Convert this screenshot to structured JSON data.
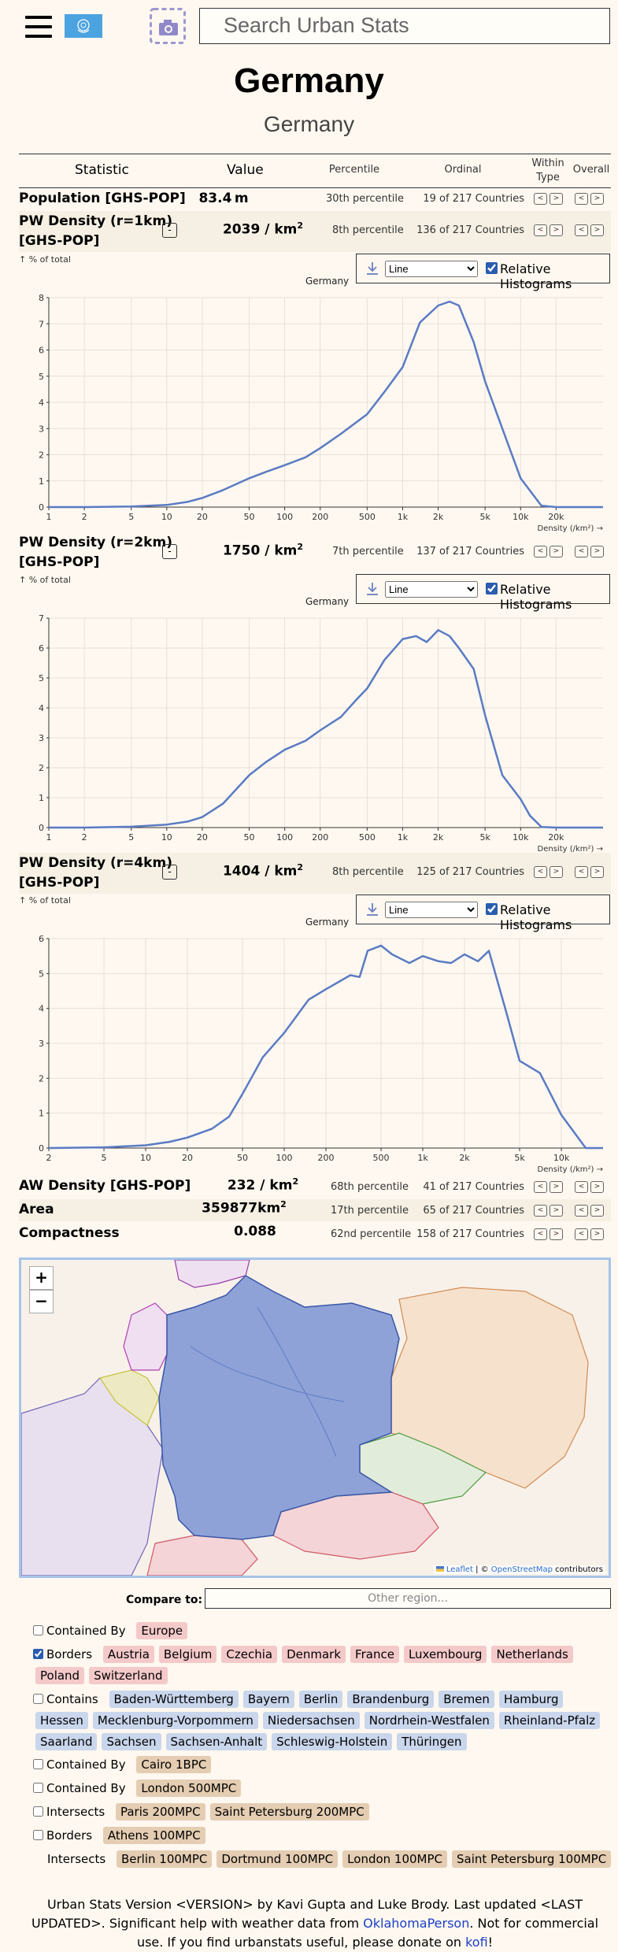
{
  "header": {
    "search_placeholder": "Search Urban Stats",
    "icons": [
      "hamburger-menu-icon",
      "un-flag-icon",
      "camera-icon"
    ]
  },
  "title": "Germany",
  "subtitle": "Germany",
  "table_header": {
    "statistic": "Statistic",
    "value": "Value",
    "percentile": "Percentile",
    "ordinal": "Ordinal",
    "within_type_line1": "Within",
    "within_type_line2": "Type",
    "overall": "Overall"
  },
  "rows": [
    {
      "name": "Population [GHS-POP]",
      "value": "83.4",
      "unit": "m",
      "percentile": "30th percentile",
      "ordinal": "19 of 217 Countries"
    },
    {
      "name_line1": "PW Density (r=1km)",
      "name_line2": "[GHS-POP]",
      "value": "2039",
      "unit": "/ km",
      "unit_sup": "2",
      "percentile": "8th percentile",
      "ordinal": "136 of 217 Countries",
      "expand": "-"
    },
    {
      "name_line1": "PW Density (r=2km)",
      "name_line2": "[GHS-POP]",
      "value": "1750",
      "unit": "/ km",
      "unit_sup": "2",
      "percentile": "7th percentile",
      "ordinal": "137 of 217 Countries",
      "expand": "-"
    },
    {
      "name_line1": "PW Density (r=4km)",
      "name_line2": "[GHS-POP]",
      "value": "1404",
      "unit": "/ km",
      "unit_sup": "2",
      "percentile": "8th percentile",
      "ordinal": "125 of 217 Countries",
      "expand": "-"
    },
    {
      "name": "AW Density [GHS-POP]",
      "value": "232",
      "unit": "/ km",
      "unit_sup": "2",
      "percentile": "68th percentile",
      "ordinal": "41 of 217 Countries"
    },
    {
      "name": "Area",
      "value": "359877",
      "unit": "km",
      "unit_sup": "2",
      "percentile": "17th percentile",
      "ordinal": "65 of 217 Countries"
    },
    {
      "name": "Compactness",
      "value": "0.088",
      "unit": "",
      "percentile": "62nd percentile",
      "ordinal": "158 of 217 Countries"
    }
  ],
  "nav": {
    "prev": "<",
    "next": ">"
  },
  "histogram_controls": {
    "note": "↑ % of total",
    "legend_label": "Germany",
    "style_option": "Line",
    "relative_label": "Relative Histograms",
    "relative_checked": true,
    "xlabel": "Density (/km²) →"
  },
  "chart_data": [
    {
      "type": "line",
      "title": "PW Density (r=1km) histogram",
      "x_scale": "log",
      "x_ticks": [
        "1",
        "2",
        "5",
        "10",
        "20",
        "50",
        "100",
        "200",
        "500",
        "1k",
        "2k",
        "5k",
        "10k",
        "20k"
      ],
      "x_tick_values": [
        1,
        2,
        5,
        10,
        20,
        50,
        100,
        200,
        500,
        1000,
        2000,
        5000,
        10000,
        20000
      ],
      "xlim": [
        1,
        50000
      ],
      "ylim": [
        0,
        8
      ],
      "y_ticks": [
        0,
        1,
        2,
        3,
        4,
        5,
        6,
        7,
        8
      ],
      "xlabel": "Density (/km²) →",
      "ylabel": "% of total",
      "grid": true,
      "series": [
        {
          "name": "Germany",
          "color": "#5a7bc4",
          "x": [
            1,
            2,
            5,
            10,
            15,
            20,
            30,
            50,
            70,
            100,
            150,
            200,
            300,
            500,
            700,
            1000,
            1400,
            2000,
            2500,
            3000,
            4000,
            5000,
            7000,
            10000,
            15000,
            20000,
            30000,
            50000
          ],
          "y": [
            0,
            0,
            0.02,
            0.08,
            0.2,
            0.35,
            0.65,
            1.1,
            1.35,
            1.6,
            1.9,
            2.25,
            2.8,
            3.55,
            4.4,
            5.35,
            7.05,
            7.7,
            7.85,
            7.7,
            6.3,
            4.8,
            3.0,
            1.1,
            0.05,
            0,
            0,
            0
          ]
        }
      ]
    },
    {
      "type": "line",
      "title": "PW Density (r=2km) histogram",
      "x_scale": "log",
      "x_ticks": [
        "1",
        "2",
        "5",
        "10",
        "20",
        "50",
        "100",
        "200",
        "500",
        "1k",
        "2k",
        "5k",
        "10k",
        "20k"
      ],
      "x_tick_values": [
        1,
        2,
        5,
        10,
        20,
        50,
        100,
        200,
        500,
        1000,
        2000,
        5000,
        10000,
        20000
      ],
      "xlim": [
        1,
        50000
      ],
      "ylim": [
        0,
        7
      ],
      "y_ticks": [
        0,
        1,
        2,
        3,
        4,
        5,
        6,
        7
      ],
      "xlabel": "Density (/km²) →",
      "ylabel": "% of total",
      "grid": true,
      "series": [
        {
          "name": "Germany",
          "color": "#5a7bc4",
          "x": [
            1,
            2,
            5,
            10,
            15,
            20,
            30,
            50,
            70,
            100,
            150,
            200,
            300,
            400,
            500,
            700,
            1000,
            1300,
            1600,
            2000,
            2500,
            3000,
            4000,
            5000,
            7000,
            10000,
            12000,
            15000,
            20000,
            50000
          ],
          "y": [
            0,
            0,
            0.03,
            0.1,
            0.2,
            0.35,
            0.8,
            1.75,
            2.2,
            2.6,
            2.9,
            3.25,
            3.7,
            4.25,
            4.65,
            5.6,
            6.3,
            6.4,
            6.2,
            6.6,
            6.4,
            6.0,
            5.3,
            3.75,
            1.75,
            0.95,
            0.4,
            0.02,
            0,
            0
          ]
        }
      ]
    },
    {
      "type": "line",
      "title": "PW Density (r=4km) histogram",
      "x_scale": "log",
      "x_ticks": [
        "2",
        "5",
        "10",
        "20",
        "50",
        "100",
        "200",
        "500",
        "1k",
        "2k",
        "5k",
        "10k"
      ],
      "x_tick_values": [
        2,
        5,
        10,
        20,
        50,
        100,
        200,
        500,
        1000,
        2000,
        5000,
        10000
      ],
      "xlim": [
        2,
        20000
      ],
      "ylim": [
        0,
        6
      ],
      "y_ticks": [
        0,
        1,
        2,
        3,
        4,
        5,
        6
      ],
      "xlabel": "Density (/km²) →",
      "ylabel": "% of total",
      "grid": true,
      "series": [
        {
          "name": "Germany",
          "color": "#5a7bc4",
          "x": [
            2,
            5,
            10,
            15,
            20,
            30,
            40,
            50,
            70,
            100,
            150,
            200,
            300,
            350,
            400,
            500,
            600,
            800,
            1000,
            1300,
            1600,
            2000,
            2500,
            3000,
            4000,
            5000,
            7000,
            10000,
            15000,
            20000
          ],
          "y": [
            0,
            0.02,
            0.08,
            0.18,
            0.3,
            0.55,
            0.9,
            1.55,
            2.6,
            3.3,
            4.25,
            4.55,
            4.95,
            4.9,
            5.65,
            5.8,
            5.55,
            5.3,
            5.5,
            5.35,
            5.3,
            5.55,
            5.35,
            5.65,
            3.9,
            2.5,
            2.15,
            0.95,
            0,
            0
          ]
        }
      ]
    }
  ],
  "map": {
    "zoom_in": "+",
    "zoom_out": "−",
    "attribution_leaflet": "Leaflet",
    "attribution_sep": " | © ",
    "attribution_osm": "OpenStreetMap",
    "attribution_tail": " contributors",
    "colors": {
      "germany": "#7f95cc",
      "neighbors": [
        "#f5d9c3",
        "#e9dced",
        "#ecebc4",
        "#f3d2d4",
        "#dceadc",
        "#e6ddef"
      ]
    }
  },
  "compare": {
    "label": "Compare to:",
    "placeholder": "Other region..."
  },
  "relationships": [
    {
      "kind": "Contained By",
      "checked": false,
      "color": "red",
      "items": [
        "Europe"
      ]
    },
    {
      "kind": "Borders",
      "checked": true,
      "color": "red",
      "items": [
        "Austria",
        "Belgium",
        "Czechia",
        "Denmark",
        "France",
        "Luxembourg",
        "Netherlands",
        "Poland",
        "Switzerland"
      ]
    },
    {
      "kind": "Contains",
      "checked": false,
      "color": "blue",
      "items": [
        "Baden-Württemberg",
        "Bayern",
        "Berlin",
        "Brandenburg",
        "Bremen",
        "Hamburg",
        "Hessen",
        "Mecklenburg-Vorpommern",
        "Niedersachsen",
        "Nordrhein-Westfalen",
        "Rheinland-Pfalz",
        "Saarland",
        "Sachsen",
        "Sachsen-Anhalt",
        "Schleswig-Holstein",
        "Thüringen"
      ]
    },
    {
      "kind": "Contained By",
      "checked": false,
      "color": "tan",
      "items": [
        "Cairo 1BPC"
      ]
    },
    {
      "kind": "Contained By",
      "checked": false,
      "color": "tan",
      "items": [
        "London 500MPC"
      ]
    },
    {
      "kind": "Intersects",
      "checked": false,
      "color": "tan",
      "items": [
        "Paris 200MPC",
        "Saint Petersburg 200MPC"
      ]
    },
    {
      "kind": "Borders",
      "checked": false,
      "color": "tan",
      "items": [
        "Athens 100MPC"
      ]
    },
    {
      "kind": "Intersects",
      "checked": null,
      "color": "tan",
      "items": [
        "Berlin 100MPC",
        "Dortmund 100MPC",
        "London 100MPC",
        "Saint Petersburg 100MPC"
      ]
    }
  ],
  "footer": {
    "text1": "Urban Stats Version <VERSION> by Kavi Gupta and Luke Brody. Last updated <LAST UPDATED>. Significant help with weather data from ",
    "link1": "OklahomaPerson",
    "text2": ". Not for commercial use. If you find urbanstats useful, please donate on ",
    "link2": "kofi",
    "text3": "!"
  }
}
